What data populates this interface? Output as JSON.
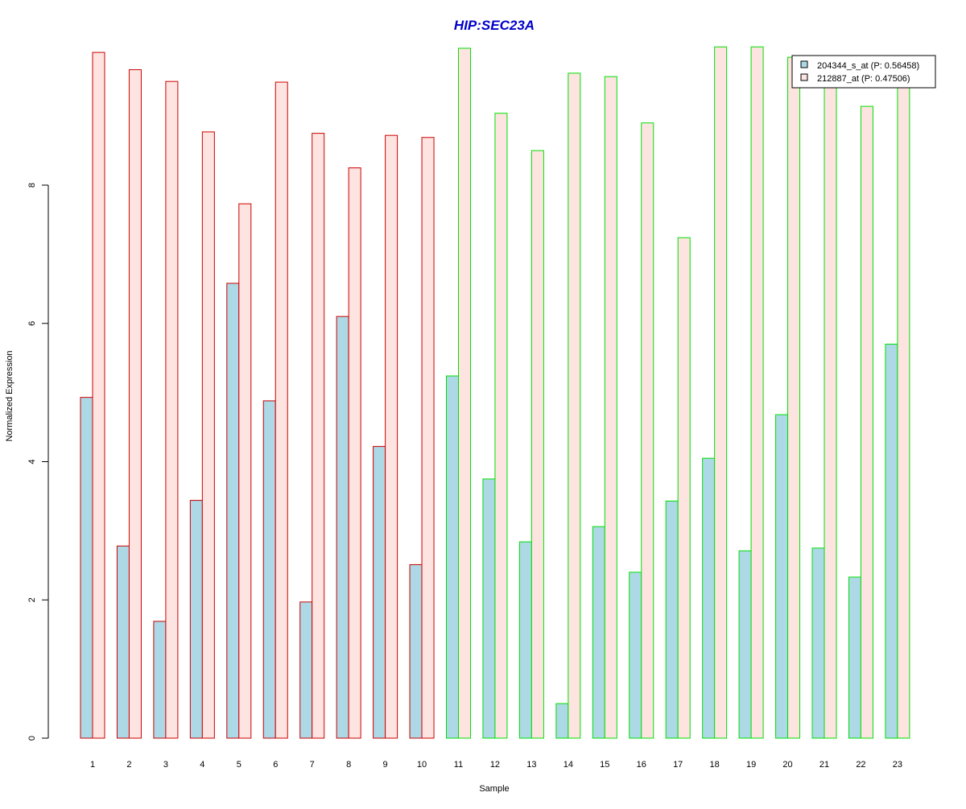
{
  "colors": {
    "title": "#0000cc",
    "series_1_fill": "#add8e6",
    "series_2_fill": "#fde4e1",
    "group_1_border": "#cc0000",
    "group_2_border": "#00e000",
    "axis": "#000000"
  },
  "chart_data": {
    "type": "bar",
    "title": "HIP:SEC23A",
    "xlabel": "Sample",
    "ylabel": "Normalized Expression",
    "ylim": [
      0,
      10.3
    ],
    "yticks": [
      0,
      2,
      4,
      6,
      8
    ],
    "ytick_labels": [
      "0",
      "2",
      "4",
      "6",
      "8"
    ],
    "categories": [
      "1",
      "2",
      "3",
      "4",
      "5",
      "6",
      "7",
      "8",
      "9",
      "10",
      "11",
      "12",
      "13",
      "14",
      "15",
      "16",
      "17",
      "18",
      "19",
      "20",
      "21",
      "22",
      "23"
    ],
    "group_of_category": [
      1,
      1,
      1,
      1,
      1,
      1,
      1,
      1,
      1,
      1,
      2,
      2,
      2,
      2,
      2,
      2,
      2,
      2,
      2,
      2,
      2,
      2,
      2
    ],
    "grid": false,
    "legend_position": "top-right",
    "series": [
      {
        "name": "204344_s_at (P: 0.56458)",
        "values": [
          4.93,
          2.78,
          1.69,
          3.44,
          6.58,
          4.88,
          1.97,
          6.1,
          4.22,
          2.51,
          5.24,
          3.75,
          2.84,
          0.5,
          3.06,
          2.4,
          3.43,
          4.05,
          2.71,
          4.68,
          2.75,
          2.33,
          5.7
        ]
      },
      {
        "name": "212887_at (P: 0.47506)",
        "values": [
          9.92,
          9.67,
          9.5,
          8.77,
          7.73,
          9.49,
          8.75,
          8.25,
          8.72,
          8.69,
          9.98,
          9.04,
          8.5,
          9.62,
          9.57,
          8.9,
          7.24,
          10.0,
          10.0,
          9.85,
          9.5,
          9.14,
          9.5
        ]
      }
    ]
  }
}
